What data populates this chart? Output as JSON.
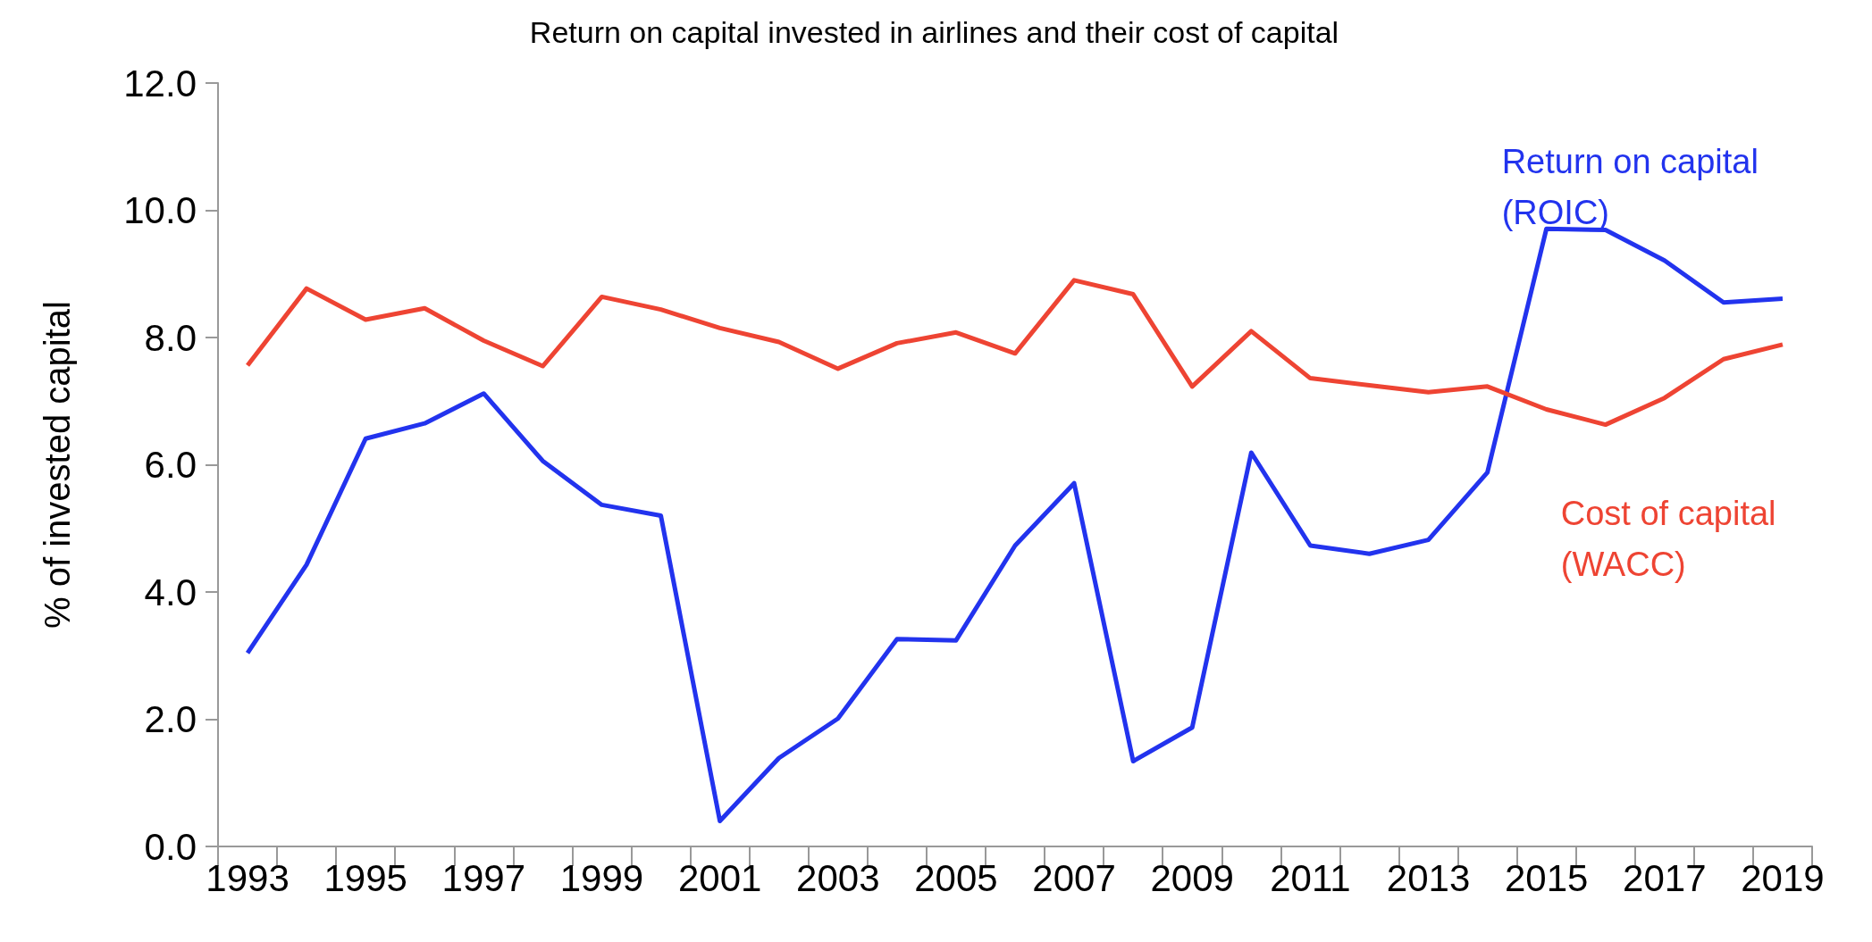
{
  "chart_data": {
    "type": "line",
    "title": "Return on capital invested in airlines and their cost of capital",
    "ylabel": "% of invested capital",
    "categories": [
      "1993",
      null,
      "1995",
      null,
      "1997",
      null,
      "1999",
      null,
      "2001",
      null,
      "2003",
      null,
      "2005",
      null,
      "2007",
      null,
      "2009",
      null,
      "2011",
      null,
      "2013",
      null,
      "2015",
      null,
      "2017",
      null,
      "2019"
    ],
    "series": [
      {
        "name": "Return on capital (ROIC)",
        "color": "#2233ee",
        "values": [
          3.04,
          4.43,
          6.41,
          6.65,
          7.12,
          6.06,
          5.37,
          5.2,
          0.4,
          1.39,
          2.01,
          3.26,
          3.24,
          4.73,
          5.71,
          1.34,
          1.87,
          6.19,
          4.73,
          4.6,
          4.82,
          5.88,
          9.71,
          9.69,
          9.21,
          8.55,
          8.61
        ]
      },
      {
        "name": "Cost of capital (WACC)",
        "color": "#ee4433",
        "values": [
          7.56,
          8.77,
          8.28,
          8.46,
          7.95,
          7.55,
          8.64,
          8.44,
          8.15,
          7.93,
          7.51,
          7.91,
          8.08,
          7.75,
          8.9,
          8.68,
          7.23,
          8.1,
          7.36,
          7.25,
          7.14,
          7.23,
          6.87,
          6.63,
          7.05,
          7.66,
          7.89
        ]
      }
    ],
    "ylim": [
      0,
      12
    ],
    "yticks": [
      {
        "value": 0,
        "label": "0.0"
      },
      {
        "value": 2,
        "label": "2.0"
      },
      {
        "value": 4,
        "label": "4.0"
      },
      {
        "value": 6,
        "label": "6.0"
      },
      {
        "value": 8,
        "label": "8.0"
      },
      {
        "value": 10,
        "label": "10.0"
      },
      {
        "value": 12,
        "label": "12.0"
      }
    ],
    "grid": false,
    "legend": false,
    "marker": "none",
    "line_style": "solid"
  }
}
